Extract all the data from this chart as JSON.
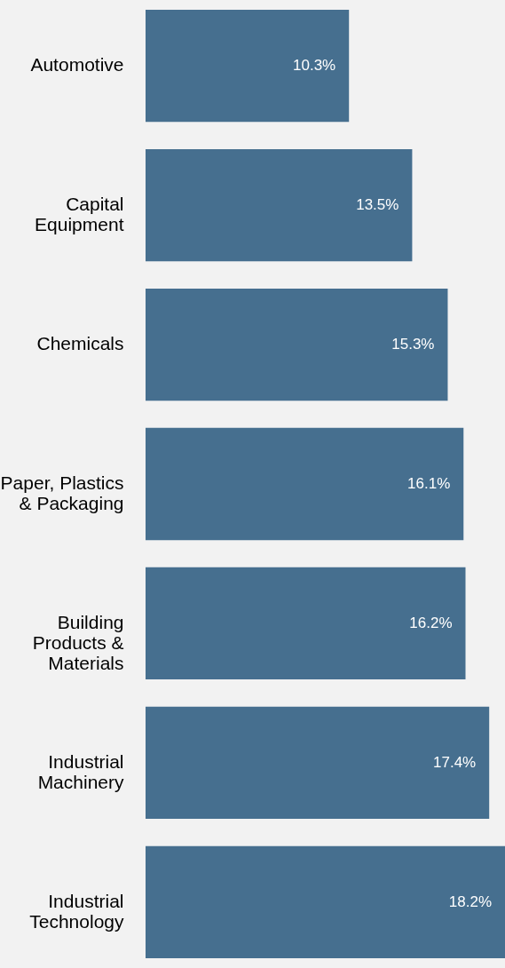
{
  "chart_data": {
    "type": "bar",
    "orientation": "horizontal",
    "categories": [
      "Automotive",
      "Capital Equipment",
      "Chemicals",
      "Paper, Plastics & Packaging",
      "Building Products & Materials",
      "Industrial Machinery",
      "Industrial Technology"
    ],
    "values": [
      10.3,
      13.5,
      15.3,
      16.1,
      16.2,
      17.4,
      18.2
    ],
    "value_labels": [
      "10.3%",
      "13.5%",
      "15.3%",
      "16.1%",
      "16.2%",
      "17.4%",
      "18.2%"
    ],
    "color": "#466f8f",
    "grid": false
  }
}
